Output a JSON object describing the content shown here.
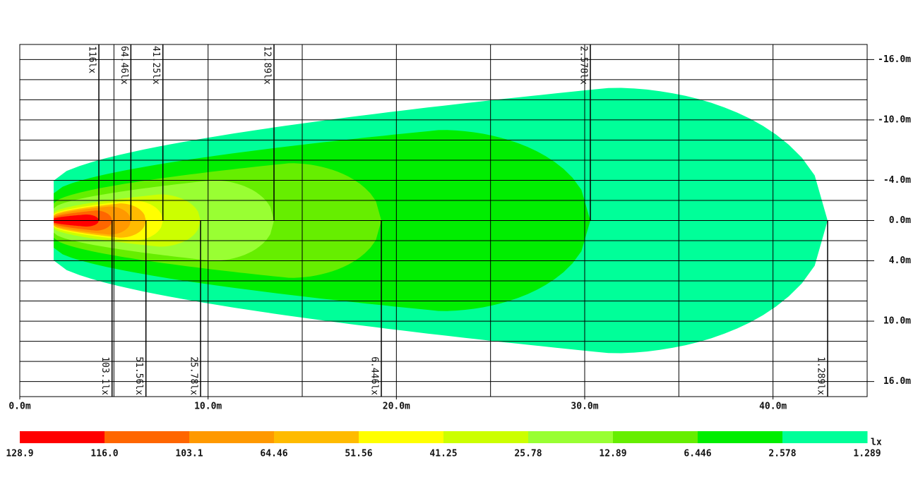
{
  "chart_data": {
    "type": "isolux",
    "xlim": [
      0,
      45
    ],
    "ylim": [
      -17.5,
      17.5
    ],
    "xticks": [
      {
        "value": 0,
        "label": "0.0m"
      },
      {
        "value": 10,
        "label": "10.0m"
      },
      {
        "value": 20,
        "label": "20.0m"
      },
      {
        "value": 30,
        "label": "30.0m"
      },
      {
        "value": 40,
        "label": "40.0m"
      }
    ],
    "yticks": [
      {
        "value": -16,
        "label": "-16.0m"
      },
      {
        "value": -10,
        "label": "-10.0m"
      },
      {
        "value": -4,
        "label": "-4.0m"
      },
      {
        "value": 0,
        "label": "0.0m"
      },
      {
        "value": 4,
        "label": "4.0m"
      },
      {
        "value": 10,
        "label": "10.0m"
      },
      {
        "value": 16,
        "label": "16.0m"
      }
    ],
    "xgrid": [
      0,
      5,
      10,
      15,
      20,
      25,
      30,
      35,
      40
    ],
    "ygrid": [
      -16,
      -14,
      -12,
      -10,
      -8,
      -6,
      -4,
      -2,
      0,
      2,
      4,
      6,
      8,
      10,
      12,
      14,
      16
    ],
    "beam_start": 1.8,
    "contours": [
      {
        "level": 1.289,
        "label": "1.289lx",
        "reach": 42.9,
        "halfwidth": 13.2,
        "side": "bottom"
      },
      {
        "level": 2.578,
        "label": "2.578lx",
        "reach": 30.3,
        "halfwidth": 9.0,
        "side": "top"
      },
      {
        "level": 6.446,
        "label": "6.446lx",
        "reach": 19.2,
        "halfwidth": 5.7,
        "side": "bottom"
      },
      {
        "level": 12.89,
        "label": "12.89lx",
        "reach": 13.5,
        "halfwidth": 4.0,
        "side": "top"
      },
      {
        "level": 25.78,
        "label": "25.78lx",
        "reach": 9.6,
        "halfwidth": 2.6,
        "side": "bottom"
      },
      {
        "level": 41.25,
        "label": "41.25lx",
        "reach": 7.6,
        "halfwidth": 2.0,
        "side": "top"
      },
      {
        "level": 51.56,
        "label": "51.56lx",
        "reach": 6.7,
        "halfwidth": 1.7,
        "side": "bottom"
      },
      {
        "level": 64.46,
        "label": "64.46lx",
        "reach": 5.9,
        "halfwidth": 1.4,
        "side": "top"
      },
      {
        "level": 103.1,
        "label": "103.1lx",
        "reach": 4.9,
        "halfwidth": 1.0,
        "side": "bottom"
      },
      {
        "level": 116,
        "label": "116lx",
        "reach": 4.2,
        "halfwidth": 0.6,
        "side": "top"
      }
    ],
    "colorbar": {
      "unit": "lx",
      "ticks": [
        {
          "value": 128.9,
          "label": "128.9"
        },
        {
          "value": 116,
          "label": "116.0"
        },
        {
          "value": 103.1,
          "label": "103.1"
        },
        {
          "value": 64.46,
          "label": "64.46"
        },
        {
          "value": 51.56,
          "label": "51.56"
        },
        {
          "value": 41.25,
          "label": "41.25"
        },
        {
          "value": 25.78,
          "label": "25.78"
        },
        {
          "value": 12.89,
          "label": "12.89"
        },
        {
          "value": 6.446,
          "label": "6.446"
        },
        {
          "value": 2.578,
          "label": "2.578"
        },
        {
          "value": 1.289,
          "label": "1.289"
        }
      ],
      "colors": [
        "#ff0000",
        "#ff6600",
        "#ff9900",
        "#ffbb00",
        "#ffff00",
        "#ccff00",
        "#99ff33",
        "#66ee00",
        "#00ee00",
        "#00ff99"
      ]
    }
  }
}
